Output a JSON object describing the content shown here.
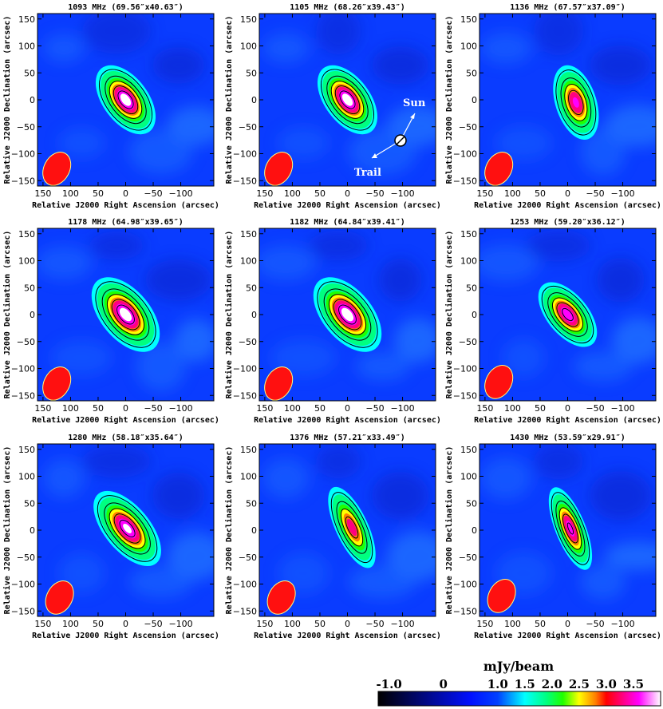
{
  "chart_data": {
    "type": "heatmap",
    "description_units": "mJy/beam",
    "xlabel": "Relative J2000 Right Ascension (arcsec)",
    "ylabel": "Relative J2000 Declination (arcsec)",
    "xlim": [
      160,
      -160
    ],
    "ylim": [
      -160,
      160
    ],
    "xticks": [
      "150",
      "100",
      "50",
      "0",
      "−50",
      "−100"
    ],
    "xtick_values": [
      150,
      100,
      50,
      0,
      -50,
      -100
    ],
    "yticks": [
      "150",
      "100",
      "50",
      "0",
      "−50",
      "−100",
      "−150"
    ],
    "ytick_values": [
      150,
      100,
      50,
      0,
      -50,
      -100,
      -150
    ],
    "panels": [
      {
        "title": "1093 MHz (69.56″x40.63″)",
        "peak_x": 0,
        "peak_y": 0,
        "peak": 3.9,
        "tilt_deg": 37,
        "major": 72,
        "minor": 42,
        "beam_x": 125,
        "beam_y": -128
      },
      {
        "title": "1105 MHz (68.26″x39.43″)",
        "peak_x": 0,
        "peak_y": 0,
        "peak": 3.9,
        "tilt_deg": 37,
        "major": 72,
        "minor": 42,
        "beam_x": 125,
        "beam_y": -128
      },
      {
        "title": "1136 MHz (67.57″x37.09″)",
        "peak_x": -15,
        "peak_y": -5,
        "peak": 3.5,
        "tilt_deg": 18,
        "major": 70,
        "minor": 38,
        "beam_x": 125,
        "beam_y": -128
      },
      {
        "title": "1178 MHz (64.98″x39.65″)",
        "peak_x": 0,
        "peak_y": 0,
        "peak": 3.9,
        "tilt_deg": 40,
        "major": 80,
        "minor": 46,
        "beam_x": 125,
        "beam_y": -128
      },
      {
        "title": "1182 MHz (64.84″x39.41″)",
        "peak_x": 0,
        "peak_y": 0,
        "peak": 3.9,
        "tilt_deg": 40,
        "major": 80,
        "minor": 46,
        "beam_x": 125,
        "beam_y": -128
      },
      {
        "title": "1253 MHz (59.20″x36.12″)",
        "peak_x": 0,
        "peak_y": 0,
        "peak": 3.7,
        "tilt_deg": 40,
        "major": 70,
        "minor": 38,
        "beam_x": 125,
        "beam_y": -125
      },
      {
        "title": "1280 MHz (58.18″x35.64″)",
        "peak_x": -3,
        "peak_y": 3,
        "peak": 3.8,
        "tilt_deg": 40,
        "major": 82,
        "minor": 42,
        "beam_x": 120,
        "beam_y": -125
      },
      {
        "title": "1376 MHz (57.21″x33.49″)",
        "peak_x": -8,
        "peak_y": 5,
        "peak": 3.3,
        "tilt_deg": 25,
        "major": 80,
        "minor": 30,
        "beam_x": 120,
        "beam_y": -125
      },
      {
        "title": "1430 MHz (53.59″x29.91″)",
        "peak_x": -5,
        "peak_y": 3,
        "peak": 3.6,
        "tilt_deg": 22,
        "major": 80,
        "minor": 28,
        "beam_x": 120,
        "beam_y": -122
      }
    ],
    "annotations": {
      "sun_label": "Sun",
      "trail_label": "Trail"
    },
    "colorbar": {
      "label": "mJy/beam",
      "range": [
        -1.2,
        4.0
      ],
      "ticks": [
        "-1.0",
        "0",
        "1.0",
        "1.5",
        "2.0",
        "2.5",
        "3.0",
        "3.5"
      ],
      "tick_values": [
        -1.0,
        0,
        1.0,
        1.5,
        2.0,
        2.5,
        3.0,
        3.5
      ],
      "stops": [
        {
          "v": -1.2,
          "c": "#000000"
        },
        {
          "v": 0.5,
          "c": "#0010ff"
        },
        {
          "v": 1.0,
          "c": "#0040ff"
        },
        {
          "v": 1.5,
          "c": "#00ffff"
        },
        {
          "v": 1.9,
          "c": "#00ff80"
        },
        {
          "v": 2.2,
          "c": "#20ff00"
        },
        {
          "v": 2.5,
          "c": "#ffff00"
        },
        {
          "v": 2.8,
          "c": "#ff8000"
        },
        {
          "v": 3.0,
          "c": "#ff0000"
        },
        {
          "v": 3.3,
          "c": "#ff0080"
        },
        {
          "v": 3.6,
          "c": "#ff00ff"
        },
        {
          "v": 4.0,
          "c": "#ffffff"
        }
      ]
    },
    "background_level": 1.0,
    "contour_levels": [
      1.5,
      2.0,
      2.5,
      3.0,
      3.5
    ],
    "beam_color": "#ff1010"
  }
}
